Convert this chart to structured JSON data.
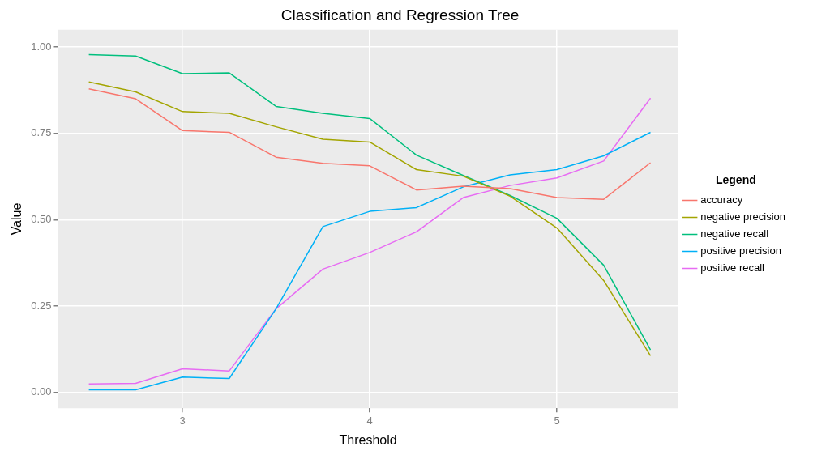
{
  "chart_data": {
    "type": "line",
    "title": "Classification and Regression Tree",
    "xlabel": "Threshold",
    "ylabel": "Value",
    "legend_title": "Legend",
    "x": [
      2.5,
      2.75,
      3,
      3.25,
      3.5,
      3.75,
      4,
      4.25,
      4.5,
      4.75,
      5,
      5.25,
      5.5
    ],
    "series": [
      {
        "name": "accuracy",
        "color": "#f8766d",
        "values": [
          0.879,
          0.85,
          0.758,
          0.753,
          0.681,
          0.663,
          0.656,
          0.586,
          0.597,
          0.59,
          0.564,
          0.559,
          0.665
        ]
      },
      {
        "name": "negative precision",
        "color": "#a3a500",
        "values": [
          0.899,
          0.87,
          0.813,
          0.808,
          0.769,
          0.733,
          0.725,
          0.645,
          0.626,
          0.568,
          0.476,
          0.324,
          0.106
        ]
      },
      {
        "name": "negative recall",
        "color": "#00bf7d",
        "values": [
          0.978,
          0.974,
          0.923,
          0.925,
          0.828,
          0.808,
          0.793,
          0.687,
          0.628,
          0.57,
          0.504,
          0.368,
          0.123
        ]
      },
      {
        "name": "positive precision",
        "color": "#00b0f6",
        "values": [
          0.007,
          0.007,
          0.044,
          0.04,
          0.242,
          0.48,
          0.524,
          0.535,
          0.595,
          0.63,
          0.645,
          0.685,
          0.753
        ]
      },
      {
        "name": "positive recall",
        "color": "#e76bf3",
        "values": [
          0.024,
          0.026,
          0.068,
          0.062,
          0.242,
          0.357,
          0.405,
          0.465,
          0.564,
          0.599,
          0.621,
          0.67,
          0.852
        ]
      }
    ],
    "xlim": [
      2.335,
      5.648
    ],
    "xticks": [
      3,
      4,
      5
    ],
    "ylim": [
      -0.046,
      1.05
    ],
    "yticks": [
      {
        "value": 0,
        "label": "0.00"
      },
      {
        "value": 0.25,
        "label": "0.25"
      },
      {
        "value": 0.5,
        "label": "0.50"
      },
      {
        "value": 0.75,
        "label": "0.75"
      },
      {
        "value": 1,
        "label": "1.00"
      }
    ],
    "grid": true,
    "legend": "right",
    "marker": "none",
    "line_style": "solid"
  }
}
